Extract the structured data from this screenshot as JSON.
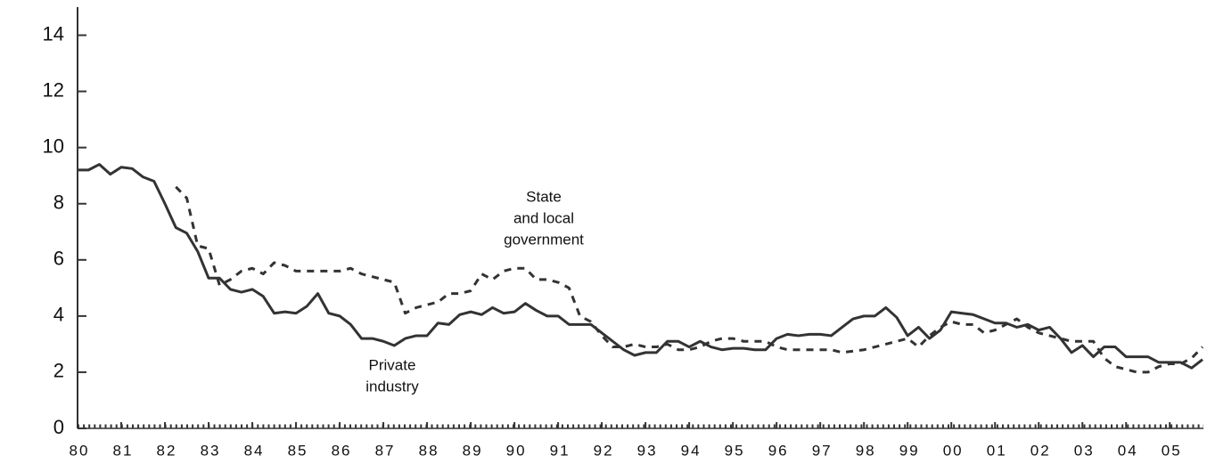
{
  "chart_data": {
    "type": "line",
    "x": [
      1980,
      1980.25,
      1980.5,
      1980.75,
      1981,
      1981.25,
      1981.5,
      1981.75,
      1982,
      1982.25,
      1982.5,
      1982.75,
      1983,
      1983.25,
      1983.5,
      1983.75,
      1984,
      1984.25,
      1984.5,
      1984.75,
      1985,
      1985.25,
      1985.5,
      1985.75,
      1986,
      1986.25,
      1986.5,
      1986.75,
      1987,
      1987.25,
      1987.5,
      1987.75,
      1988,
      1988.25,
      1988.5,
      1988.75,
      1989,
      1989.25,
      1989.5,
      1989.75,
      1990,
      1990.25,
      1990.5,
      1990.75,
      1991,
      1991.25,
      1991.5,
      1991.75,
      1992,
      1992.25,
      1992.5,
      1992.75,
      1993,
      1993.25,
      1993.5,
      1993.75,
      1994,
      1994.25,
      1994.5,
      1994.75,
      1995,
      1995.25,
      1995.5,
      1995.75,
      1996,
      1996.25,
      1996.5,
      1996.75,
      1997,
      1997.25,
      1997.5,
      1997.75,
      1998,
      1998.25,
      1998.5,
      1998.75,
      1999,
      1999.25,
      1999.5,
      1999.75,
      2000,
      2000.25,
      2000.5,
      2000.75,
      2001,
      2001.25,
      2001.5,
      2001.75,
      2002,
      2002.25,
      2002.5,
      2002.75,
      2003,
      2003.25,
      2003.5,
      2003.75,
      2004,
      2004.25,
      2004.5,
      2004.75,
      2005,
      2005.25,
      2005.5,
      2005.75
    ],
    "series": [
      {
        "label": [
          "Private",
          "industry"
        ],
        "color": "#333333",
        "style": "solid",
        "values": [
          9.2,
          9.2,
          9.4,
          9.05,
          9.3,
          9.25,
          8.95,
          8.8,
          8.0,
          7.15,
          6.95,
          6.3,
          5.35,
          5.35,
          4.95,
          4.85,
          4.95,
          4.7,
          4.1,
          4.15,
          4.1,
          4.35,
          4.8,
          4.1,
          4.0,
          3.7,
          3.2,
          3.2,
          3.1,
          2.95,
          3.2,
          3.3,
          3.3,
          3.75,
          3.7,
          4.05,
          4.15,
          4.05,
          4.3,
          4.1,
          4.15,
          4.45,
          4.2,
          4.0,
          4.0,
          3.7,
          3.7,
          3.7,
          3.4,
          3.1,
          2.8,
          2.6,
          2.7,
          2.7,
          3.1,
          3.1,
          2.9,
          3.1,
          2.9,
          2.8,
          2.85,
          2.85,
          2.8,
          2.8,
          3.2,
          3.35,
          3.3,
          3.35,
          3.35,
          3.3,
          3.6,
          3.9,
          4.0,
          4.0,
          4.3,
          3.95,
          3.3,
          3.6,
          3.2,
          3.5,
          4.15,
          4.1,
          4.05,
          3.9,
          3.75,
          3.75,
          3.6,
          3.7,
          3.5,
          3.6,
          3.2,
          2.7,
          2.95,
          2.55,
          2.9,
          2.9,
          2.55,
          2.55,
          2.55,
          2.35,
          2.35,
          2.35,
          2.15,
          2.45
        ]
      },
      {
        "label": [
          "State",
          "and local",
          "government"
        ],
        "color": "#333333",
        "style": "dashed",
        "values": [
          null,
          null,
          null,
          null,
          null,
          null,
          null,
          null,
          null,
          8.6,
          8.2,
          6.5,
          6.4,
          5.1,
          5.3,
          5.6,
          5.7,
          5.5,
          5.9,
          5.8,
          5.6,
          5.6,
          5.6,
          5.6,
          5.6,
          5.7,
          5.5,
          5.4,
          5.3,
          5.2,
          4.1,
          4.3,
          4.4,
          4.5,
          4.8,
          4.8,
          4.9,
          5.5,
          5.3,
          5.6,
          5.7,
          5.7,
          5.3,
          5.3,
          5.2,
          5.0,
          4.0,
          3.8,
          3.3,
          2.9,
          2.9,
          3.0,
          2.9,
          2.9,
          3.0,
          2.8,
          2.8,
          2.9,
          3.1,
          3.2,
          3.2,
          3.1,
          3.1,
          3.1,
          2.9,
          2.8,
          2.8,
          2.8,
          2.8,
          2.8,
          2.7,
          2.75,
          2.8,
          2.9,
          3.0,
          3.1,
          3.2,
          2.9,
          3.3,
          3.6,
          3.8,
          3.7,
          3.7,
          3.4,
          3.5,
          3.7,
          3.9,
          3.6,
          3.4,
          3.3,
          3.2,
          3.1,
          3.1,
          3.1,
          2.5,
          2.2,
          2.1,
          2.0,
          2.0,
          2.2,
          2.3,
          2.3,
          2.5,
          2.9
        ]
      }
    ],
    "xlim": [
      1980,
      2005.75
    ],
    "xticks": [
      {
        "value": 1980,
        "label": "80"
      },
      {
        "value": 1981,
        "label": "81"
      },
      {
        "value": 1982,
        "label": "82"
      },
      {
        "value": 1983,
        "label": "83"
      },
      {
        "value": 1984,
        "label": "84"
      },
      {
        "value": 1985,
        "label": "85"
      },
      {
        "value": 1986,
        "label": "86"
      },
      {
        "value": 1987,
        "label": "87"
      },
      {
        "value": 1988,
        "label": "88"
      },
      {
        "value": 1989,
        "label": "89"
      },
      {
        "value": 1990,
        "label": "90"
      },
      {
        "value": 1991,
        "label": "91"
      },
      {
        "value": 1992,
        "label": "92"
      },
      {
        "value": 1993,
        "label": "93"
      },
      {
        "value": 1994,
        "label": "94"
      },
      {
        "value": 1995,
        "label": "95"
      },
      {
        "value": 1996,
        "label": "96"
      },
      {
        "value": 1997,
        "label": "97"
      },
      {
        "value": 1998,
        "label": "98"
      },
      {
        "value": 1999,
        "label": "99"
      },
      {
        "value": 2000,
        "label": "00"
      },
      {
        "value": 2001,
        "label": "01"
      },
      {
        "value": 2002,
        "label": "02"
      },
      {
        "value": 2003,
        "label": "03"
      },
      {
        "value": 2004,
        "label": "04"
      },
      {
        "value": 2005,
        "label": "05"
      }
    ],
    "ylim": [
      0,
      15
    ],
    "yticks": [
      0,
      2,
      4,
      6,
      8,
      10,
      12,
      14
    ],
    "grid": false
  }
}
